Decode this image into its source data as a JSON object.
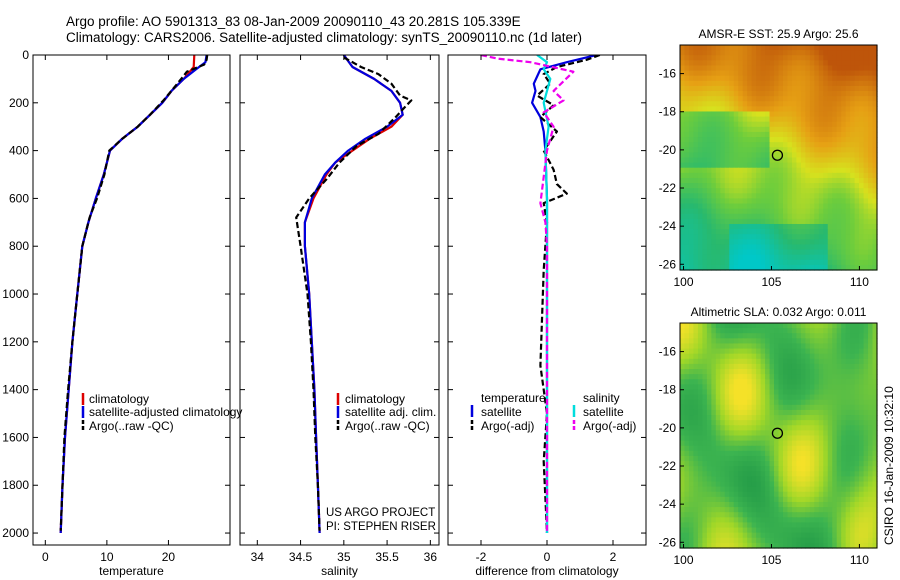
{
  "header": {
    "line1": "Argo profile: AO 5901313_83 08-Jan-2009 20090110_43 20.281S 105.339E",
    "line2": "Climatology: CARS2006. Satellite-adjusted climatology: synTS_20090110.nc (1d later)"
  },
  "credit": "CSIRO 16-Jan-2009 10:32:10",
  "chart_data": [
    {
      "type": "line",
      "id": "temperature",
      "xlabel": "temperature",
      "xlim": [
        -2,
        30
      ],
      "ylim": [
        2050,
        0
      ],
      "xticks": [
        0,
        10,
        20
      ],
      "yticks": [
        0,
        200,
        400,
        600,
        800,
        1000,
        1200,
        1400,
        1600,
        1800,
        2000
      ],
      "legend": [
        "climatology",
        "satellite-adjusted climatology",
        "Argo(..raw -QC)"
      ],
      "series": [
        {
          "name": "climatology",
          "color": "#dd0000",
          "dash": false,
          "points": [
            [
              24.2,
              0
            ],
            [
              24.1,
              50
            ],
            [
              22.5,
              100
            ],
            [
              20.5,
              150
            ],
            [
              19,
              200
            ],
            [
              17,
              250
            ],
            [
              15,
              300
            ],
            [
              12.5,
              350
            ],
            [
              10.5,
              400
            ],
            [
              9.5,
              500
            ],
            [
              8.2,
              600
            ],
            [
              7,
              700
            ],
            [
              6,
              800
            ],
            [
              5.2,
              1000
            ],
            [
              4.4,
              1200
            ],
            [
              3.8,
              1400
            ],
            [
              3.2,
              1600
            ],
            [
              2.8,
              1800
            ],
            [
              2.5,
              2000
            ]
          ]
        },
        {
          "name": "satellite-adjusted climatology",
          "color": "#0000dd",
          "dash": false,
          "points": [
            [
              26.2,
              0
            ],
            [
              26,
              30
            ],
            [
              24.5,
              60
            ],
            [
              22.5,
              100
            ],
            [
              20.5,
              150
            ],
            [
              19,
              200
            ],
            [
              17,
              250
            ],
            [
              15,
              300
            ],
            [
              12.5,
              350
            ],
            [
              10.5,
              400
            ],
            [
              9.5,
              500
            ],
            [
              8.2,
              600
            ],
            [
              7,
              700
            ],
            [
              6,
              800
            ],
            [
              5.2,
              1000
            ],
            [
              4.4,
              1200
            ],
            [
              3.8,
              1400
            ],
            [
              3.2,
              1600
            ],
            [
              2.8,
              1800
            ],
            [
              2.5,
              2000
            ]
          ]
        },
        {
          "name": "Argo(..raw -QC)",
          "color": "#000000",
          "dash": true,
          "points": [
            [
              26.3,
              0
            ],
            [
              26.2,
              20
            ],
            [
              25.8,
              40
            ],
            [
              23,
              70
            ],
            [
              22.4,
              90
            ],
            [
              20.8,
              140
            ],
            [
              19.2,
              190
            ],
            [
              17,
              250
            ],
            [
              15,
              300
            ],
            [
              12.5,
              350
            ],
            [
              10.4,
              400
            ],
            [
              9.6,
              500
            ],
            [
              8.4,
              600
            ],
            [
              7.2,
              680
            ],
            [
              6,
              800
            ],
            [
              5.2,
              1000
            ],
            [
              4.4,
              1200
            ],
            [
              3.7,
              1400
            ],
            [
              3.1,
              1600
            ],
            [
              2.8,
              1800
            ],
            [
              2.5,
              1990
            ]
          ]
        }
      ]
    },
    {
      "type": "line",
      "id": "salinity",
      "xlabel": "salinity",
      "xlim": [
        33.8,
        36.1
      ],
      "ylim": [
        2050,
        0
      ],
      "xticks": [
        34,
        34.5,
        35,
        35.5,
        36
      ],
      "legend": [
        "climatology",
        "satellite adj. clim.",
        "Argo(..raw -QC)"
      ],
      "annotation": [
        "US ARGO PROJECT",
        "PI: STEPHEN RISER"
      ],
      "series": [
        {
          "name": "climatology",
          "color": "#dd0000",
          "dash": false,
          "points": [
            [
              35.0,
              0
            ],
            [
              35.1,
              50
            ],
            [
              35.35,
              100
            ],
            [
              35.55,
              150
            ],
            [
              35.65,
              200
            ],
            [
              35.68,
              250
            ],
            [
              35.55,
              300
            ],
            [
              35.3,
              350
            ],
            [
              35.1,
              400
            ],
            [
              34.9,
              450
            ],
            [
              34.8,
              500
            ],
            [
              34.65,
              600
            ],
            [
              34.55,
              700
            ],
            [
              34.55,
              800
            ],
            [
              34.6,
              1000
            ],
            [
              34.63,
              1200
            ],
            [
              34.66,
              1400
            ],
            [
              34.68,
              1600
            ],
            [
              34.7,
              1800
            ],
            [
              34.72,
              2000
            ]
          ]
        },
        {
          "name": "satellite adj. clim.",
          "color": "#0000dd",
          "dash": false,
          "points": [
            [
              35.0,
              0
            ],
            [
              35.1,
              50
            ],
            [
              35.35,
              100
            ],
            [
              35.55,
              150
            ],
            [
              35.65,
              200
            ],
            [
              35.68,
              250
            ],
            [
              35.5,
              300
            ],
            [
              35.25,
              350
            ],
            [
              35.05,
              400
            ],
            [
              34.9,
              450
            ],
            [
              34.78,
              500
            ],
            [
              34.63,
              600
            ],
            [
              34.55,
              700
            ],
            [
              34.55,
              800
            ],
            [
              34.6,
              1000
            ],
            [
              34.63,
              1200
            ],
            [
              34.66,
              1400
            ],
            [
              34.68,
              1600
            ],
            [
              34.7,
              1800
            ],
            [
              34.72,
              2000
            ]
          ]
        },
        {
          "name": "Argo(..raw -QC)",
          "color": "#000000",
          "dash": true,
          "points": [
            [
              35.0,
              10
            ],
            [
              35.2,
              50
            ],
            [
              35.4,
              80
            ],
            [
              35.55,
              120
            ],
            [
              35.65,
              170
            ],
            [
              35.78,
              190
            ],
            [
              35.7,
              220
            ],
            [
              35.6,
              260
            ],
            [
              35.4,
              330
            ],
            [
              35.15,
              380
            ],
            [
              34.95,
              450
            ],
            [
              34.8,
              520
            ],
            [
              34.6,
              600
            ],
            [
              34.45,
              680
            ],
            [
              34.5,
              800
            ],
            [
              34.58,
              1000
            ],
            [
              34.62,
              1200
            ],
            [
              34.65,
              1400
            ],
            [
              34.67,
              1600
            ],
            [
              34.7,
              1800
            ],
            [
              34.72,
              1990
            ]
          ]
        }
      ]
    },
    {
      "type": "line",
      "id": "difference",
      "xlabel": "difference from climatology",
      "xlim": [
        -3,
        3
      ],
      "ylim": [
        2050,
        0
      ],
      "xticks": [
        -2,
        0,
        2
      ],
      "legend_temperature_title": "temperature",
      "legend_salinity_title": "salinity",
      "legend_temperature": [
        "satellite",
        "Argo(-adj)"
      ],
      "legend_salinity": [
        "satellite",
        "Argo(-adj)"
      ],
      "series": [
        {
          "name": "temperature satellite",
          "color": "#0000dd",
          "dash": false,
          "points": [
            [
              1.5,
              0
            ],
            [
              0.6,
              30
            ],
            [
              -0.2,
              60
            ],
            [
              -0.3,
              90
            ],
            [
              -0.4,
              120
            ],
            [
              -0.35,
              150
            ],
            [
              -0.45,
              200
            ],
            [
              -0.2,
              260
            ],
            [
              -0.1,
              320
            ],
            [
              -0.05,
              400
            ],
            [
              0,
              600
            ],
            [
              0,
              2000
            ]
          ]
        },
        {
          "name": "temperature Argo(-adj)",
          "color": "#000000",
          "dash": true,
          "points": [
            [
              1.6,
              0
            ],
            [
              1.2,
              20
            ],
            [
              0.3,
              50
            ],
            [
              -0.1,
              80
            ],
            [
              0.1,
              120
            ],
            [
              -0.3,
              170
            ],
            [
              0.2,
              210
            ],
            [
              -0.2,
              260
            ],
            [
              0.3,
              320
            ],
            [
              -0.1,
              400
            ],
            [
              0.2,
              480
            ],
            [
              0.3,
              540
            ],
            [
              0.6,
              580
            ],
            [
              -0.1,
              620
            ],
            [
              0,
              700
            ],
            [
              -0.1,
              900
            ],
            [
              -0.2,
              1300
            ],
            [
              0,
              1500
            ],
            [
              -0.1,
              1700
            ],
            [
              0,
              2000
            ]
          ]
        },
        {
          "name": "salinity satellite",
          "color": "#00dddd",
          "dash": false,
          "points": [
            [
              -0.3,
              0
            ],
            [
              0,
              30
            ],
            [
              -0.1,
              60
            ],
            [
              0.1,
              100
            ],
            [
              0,
              150
            ],
            [
              -0.1,
              200
            ],
            [
              0.05,
              300
            ],
            [
              -0.05,
              400
            ],
            [
              0,
              600
            ],
            [
              0,
              2000
            ]
          ]
        },
        {
          "name": "salinity Argo(-adj)",
          "color": "#ee00ee",
          "dash": true,
          "points": [
            [
              -2,
              0
            ],
            [
              -1.5,
              15
            ],
            [
              -0.5,
              30
            ],
            [
              0.8,
              70
            ],
            [
              0.5,
              110
            ],
            [
              0.2,
              150
            ],
            [
              0.5,
              190
            ],
            [
              -0.1,
              240
            ],
            [
              0.2,
              300
            ],
            [
              0,
              400
            ],
            [
              -0.2,
              620
            ],
            [
              -0.05,
              700
            ],
            [
              0,
              800
            ],
            [
              0,
              2000
            ]
          ]
        }
      ]
    }
  ],
  "maps": [
    {
      "id": "sst",
      "title": "AMSR-E SST: 25.9 Argo: 25.6",
      "xticks": [
        100,
        105,
        110
      ],
      "yticks": [
        -16,
        -18,
        -20,
        -22,
        -24,
        -26
      ],
      "xlim": [
        99.8,
        111
      ],
      "ylim": [
        -26.3,
        -14.5
      ],
      "marker": {
        "lon": 105.339,
        "lat": -20.281
      }
    },
    {
      "id": "sla",
      "title": "Altimetric SLA: 0.032 Argo: 0.011",
      "xticks": [
        100,
        105,
        110
      ],
      "yticks": [
        -16,
        -18,
        -20,
        -22,
        -24,
        -26
      ],
      "xlim": [
        99.8,
        111
      ],
      "ylim": [
        -26.3,
        -14.5
      ],
      "marker": {
        "lon": 105.339,
        "lat": -20.281
      }
    }
  ]
}
